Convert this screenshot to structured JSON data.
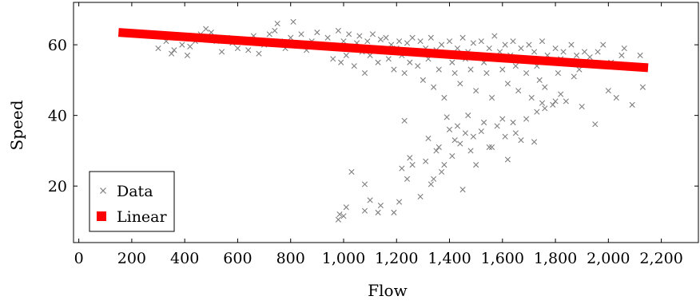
{
  "chart_data": {
    "type": "scatter",
    "xlabel": "Flow",
    "ylabel": "Speed",
    "xlim": [
      -20,
      2340
    ],
    "ylim": [
      4,
      72
    ],
    "xticks": [
      0,
      200,
      400,
      600,
      800,
      1000,
      1200,
      1400,
      1600,
      1800,
      2000,
      2200
    ],
    "xtick_labels": [
      "0",
      "200",
      "400",
      "600",
      "800",
      "1,000",
      "1,200",
      "1,400",
      "1,600",
      "1,800",
      "2,000",
      "2,200"
    ],
    "yticks": [
      20,
      40,
      60
    ],
    "ytick_labels": [
      "20",
      "40",
      "60"
    ],
    "legend_position": "bottom-left",
    "series": [
      {
        "name": "Data",
        "kind": "scatter",
        "marker": "x",
        "color": "#808080",
        "points": [
          [
            300,
            59
          ],
          [
            330,
            61
          ],
          [
            350,
            57.5
          ],
          [
            360,
            58.5
          ],
          [
            370,
            62
          ],
          [
            390,
            60
          ],
          [
            410,
            57
          ],
          [
            420,
            59.5
          ],
          [
            440,
            61
          ],
          [
            460,
            63
          ],
          [
            480,
            64.5
          ],
          [
            500,
            63.5
          ],
          [
            520,
            61
          ],
          [
            540,
            58
          ],
          [
            560,
            62
          ],
          [
            580,
            60.5
          ],
          [
            600,
            59
          ],
          [
            620,
            61.5
          ],
          [
            640,
            58.5
          ],
          [
            660,
            62.5
          ],
          [
            680,
            57.5
          ],
          [
            700,
            60
          ],
          [
            720,
            63
          ],
          [
            740,
            64
          ],
          [
            750,
            66
          ],
          [
            760,
            61
          ],
          [
            780,
            59
          ],
          [
            800,
            62
          ],
          [
            810,
            66.5
          ],
          [
            820,
            60.5
          ],
          [
            840,
            63
          ],
          [
            860,
            58.5
          ],
          [
            880,
            61
          ],
          [
            900,
            63.5
          ],
          [
            920,
            60
          ],
          [
            940,
            62
          ],
          [
            960,
            56
          ],
          [
            970,
            59
          ],
          [
            980,
            64
          ],
          [
            990,
            55
          ],
          [
            1000,
            61
          ],
          [
            1010,
            57
          ],
          [
            1020,
            63
          ],
          [
            1030,
            59.5
          ],
          [
            1040,
            54
          ],
          [
            1050,
            60.5
          ],
          [
            1060,
            62.5
          ],
          [
            1070,
            58
          ],
          [
            1080,
            52
          ],
          [
            1090,
            61
          ],
          [
            1100,
            57
          ],
          [
            1110,
            63
          ],
          [
            1120,
            59
          ],
          [
            1130,
            55
          ],
          [
            1140,
            61.5
          ],
          [
            1150,
            58
          ],
          [
            1160,
            62
          ],
          [
            1170,
            56
          ],
          [
            1180,
            60
          ],
          [
            1190,
            53
          ],
          [
            1200,
            59
          ],
          [
            1210,
            61
          ],
          [
            1220,
            57
          ],
          [
            1230,
            52
          ],
          [
            1240,
            60.5
          ],
          [
            1250,
            55
          ],
          [
            1260,
            62
          ],
          [
            1270,
            58
          ],
          [
            1280,
            54
          ],
          [
            1290,
            61
          ],
          [
            1300,
            50
          ],
          [
            1310,
            59
          ],
          [
            1320,
            56
          ],
          [
            1330,
            62
          ],
          [
            1340,
            48
          ],
          [
            1350,
            58.5
          ],
          [
            1360,
            53
          ],
          [
            1370,
            60
          ],
          [
            1380,
            45
          ],
          [
            1390,
            57
          ],
          [
            1400,
            61
          ],
          [
            1410,
            55
          ],
          [
            1420,
            52
          ],
          [
            1430,
            59
          ],
          [
            1440,
            49
          ],
          [
            1450,
            62
          ],
          [
            1460,
            56
          ],
          [
            1470,
            58
          ],
          [
            1480,
            53
          ],
          [
            1490,
            60.5
          ],
          [
            1500,
            47
          ],
          [
            1510,
            57
          ],
          [
            1520,
            61
          ],
          [
            1530,
            55
          ],
          [
            1540,
            52
          ],
          [
            1550,
            59
          ],
          [
            1560,
            45
          ],
          [
            1570,
            62.5
          ],
          [
            1580,
            56
          ],
          [
            1590,
            58
          ],
          [
            1600,
            53
          ],
          [
            1610,
            60
          ],
          [
            1620,
            49
          ],
          [
            1630,
            57
          ],
          [
            1640,
            61
          ],
          [
            1650,
            54
          ],
          [
            1660,
            47
          ],
          [
            1670,
            59
          ],
          [
            1680,
            56
          ],
          [
            1690,
            52
          ],
          [
            1700,
            60
          ],
          [
            1710,
            45
          ],
          [
            1720,
            58
          ],
          [
            1730,
            54
          ],
          [
            1740,
            50
          ],
          [
            1750,
            61
          ],
          [
            1760,
            48
          ],
          [
            1770,
            57
          ],
          [
            1780,
            55
          ],
          [
            1790,
            43
          ],
          [
            1800,
            59
          ],
          [
            1810,
            52
          ],
          [
            1820,
            56
          ],
          [
            1830,
            58
          ],
          [
            1840,
            44
          ],
          [
            1850,
            55
          ],
          [
            1860,
            60
          ],
          [
            1870,
            51
          ],
          [
            1880,
            57
          ],
          [
            1890,
            53
          ],
          [
            1900,
            42.5
          ],
          [
            1910,
            58
          ],
          [
            1920,
            55
          ],
          [
            1930,
            56.5
          ],
          [
            1950,
            37.5
          ],
          [
            1960,
            58
          ],
          [
            1980,
            60
          ],
          [
            2000,
            47
          ],
          [
            2010,
            55
          ],
          [
            2030,
            45
          ],
          [
            2050,
            57
          ],
          [
            2060,
            59
          ],
          [
            2090,
            43
          ],
          [
            2120,
            57
          ],
          [
            2130,
            48
          ],
          [
            980,
            10.5
          ],
          [
            985,
            12
          ],
          [
            1000,
            11.5
          ],
          [
            1010,
            14
          ],
          [
            1030,
            24
          ],
          [
            1080,
            20.5
          ],
          [
            1080,
            13
          ],
          [
            1100,
            16
          ],
          [
            1130,
            12.5
          ],
          [
            1140,
            14.5
          ],
          [
            1190,
            12.5
          ],
          [
            1210,
            15.5
          ],
          [
            1220,
            25
          ],
          [
            1230,
            38.5
          ],
          [
            1240,
            22
          ],
          [
            1250,
            28
          ],
          [
            1260,
            26
          ],
          [
            1290,
            17
          ],
          [
            1310,
            27
          ],
          [
            1320,
            33.5
          ],
          [
            1330,
            20.5
          ],
          [
            1340,
            22
          ],
          [
            1350,
            30
          ],
          [
            1360,
            31
          ],
          [
            1370,
            24
          ],
          [
            1380,
            26
          ],
          [
            1390,
            39.5
          ],
          [
            1400,
            36
          ],
          [
            1410,
            28.5
          ],
          [
            1420,
            33
          ],
          [
            1430,
            37
          ],
          [
            1440,
            32
          ],
          [
            1450,
            19
          ],
          [
            1460,
            35
          ],
          [
            1470,
            40
          ],
          [
            1480,
            30
          ],
          [
            1490,
            34
          ],
          [
            1500,
            26
          ],
          [
            1520,
            35.5
          ],
          [
            1530,
            38
          ],
          [
            1550,
            31
          ],
          [
            1560,
            31
          ],
          [
            1580,
            37
          ],
          [
            1600,
            39
          ],
          [
            1610,
            34
          ],
          [
            1620,
            27.5
          ],
          [
            1640,
            38
          ],
          [
            1650,
            35
          ],
          [
            1670,
            33
          ],
          [
            1690,
            39
          ],
          [
            1720,
            32.5
          ],
          [
            1730,
            41
          ],
          [
            1750,
            43.5
          ],
          [
            1760,
            42
          ],
          [
            1800,
            44
          ],
          [
            1820,
            46
          ]
        ]
      },
      {
        "name": "Linear",
        "kind": "line",
        "color": "#ff0000",
        "points": [
          [
            150,
            63.5
          ],
          [
            2150,
            53.5
          ]
        ]
      }
    ]
  }
}
